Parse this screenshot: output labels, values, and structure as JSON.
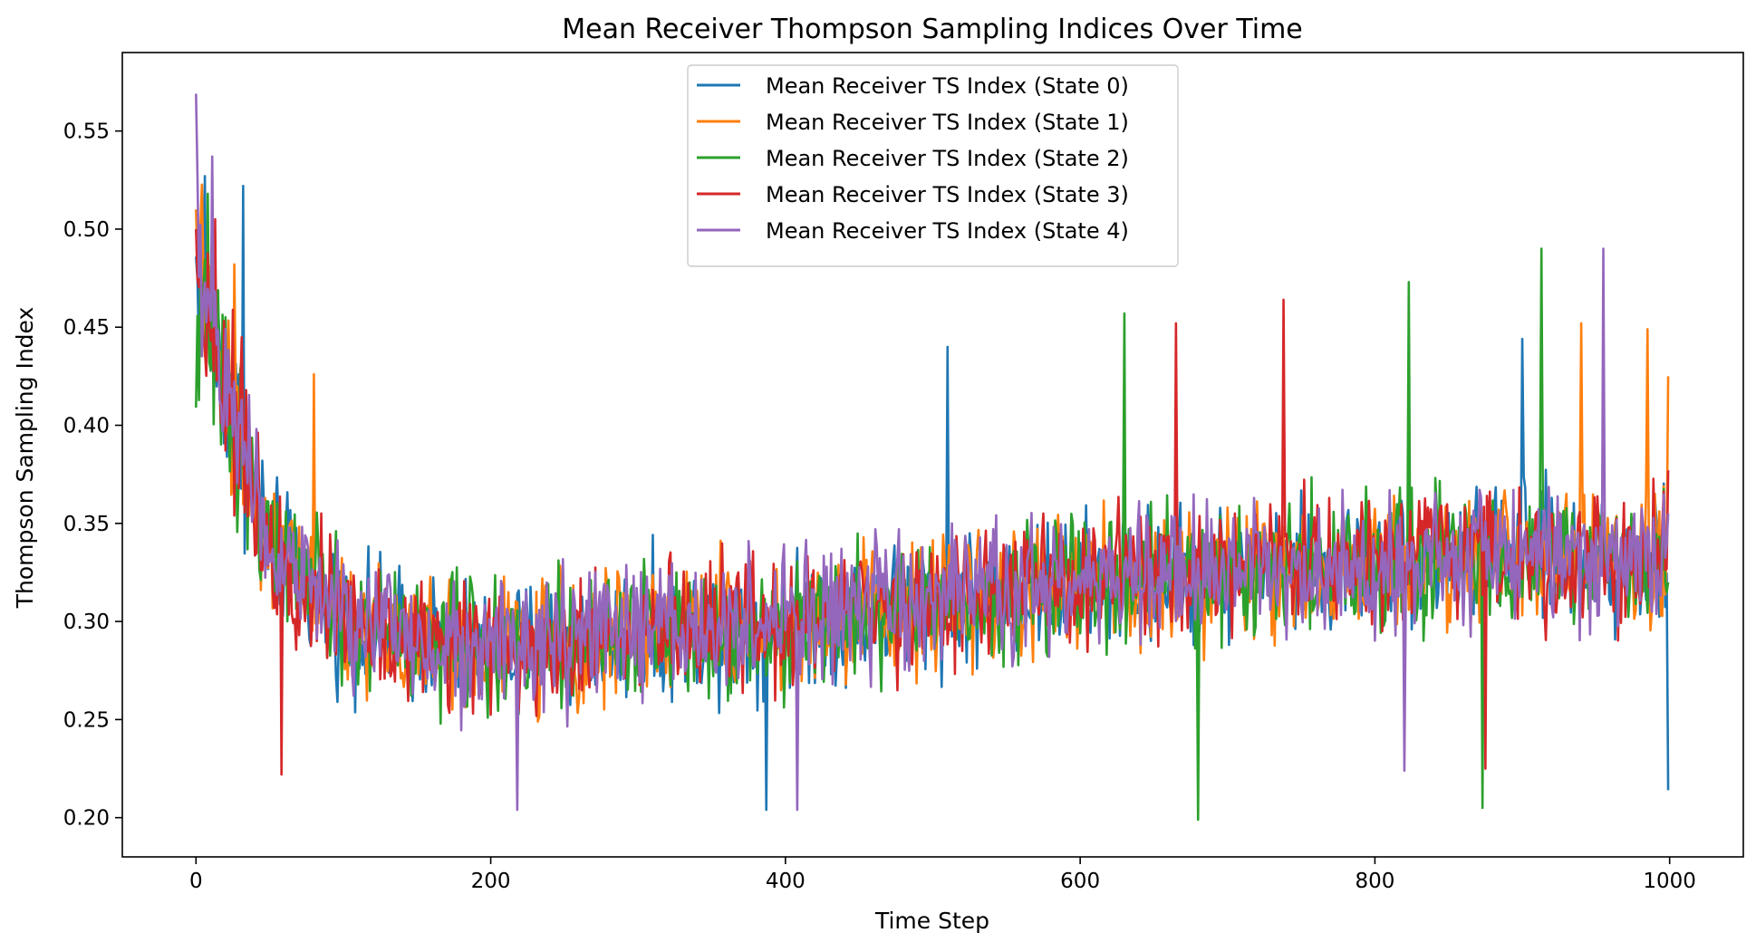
{
  "chart_data": {
    "type": "line",
    "title": "Mean Receiver Thompson Sampling Indices Over Time",
    "xlabel": "Time Step",
    "ylabel": "Thompson Sampling Index",
    "xlim": [
      -50,
      1050
    ],
    "ylim": [
      0.18,
      0.59
    ],
    "xticks": [
      0,
      200,
      400,
      600,
      800,
      1000
    ],
    "xtick_labels": [
      "0",
      "200",
      "400",
      "600",
      "800",
      "1000"
    ],
    "yticks": [
      0.2,
      0.25,
      0.3,
      0.35,
      0.4,
      0.45,
      0.5,
      0.55
    ],
    "ytick_labels": [
      "0.20",
      "0.25",
      "0.30",
      "0.35",
      "0.40",
      "0.45",
      "0.50",
      "0.55"
    ],
    "grid": false,
    "legend_position": "top-center",
    "n_points": 1000,
    "series": [
      {
        "name": "Mean Receiver TS Index (State 0)",
        "color": "#1f77b4",
        "start": 0.486,
        "end": 0.214,
        "trend_x": [
          0,
          20,
          50,
          100,
          200,
          300,
          400,
          500,
          600,
          700,
          800,
          900,
          1000
        ],
        "trend_y": [
          0.48,
          0.42,
          0.34,
          0.3,
          0.285,
          0.295,
          0.3,
          0.31,
          0.32,
          0.325,
          0.33,
          0.335,
          0.33
        ],
        "amplitude": 0.05,
        "peaks": [
          [
            6,
            0.527
          ],
          [
            32,
            0.522
          ],
          [
            510,
            0.44
          ],
          [
            387,
            0.204
          ],
          [
            900,
            0.444
          ]
        ]
      },
      {
        "name": "Mean Receiver TS Index (State 1)",
        "color": "#ff7f0e",
        "start": 0.51,
        "end": 0.425,
        "trend_x": [
          0,
          20,
          50,
          100,
          200,
          300,
          400,
          500,
          600,
          700,
          800,
          900,
          1000
        ],
        "trend_y": [
          0.49,
          0.42,
          0.34,
          0.3,
          0.285,
          0.295,
          0.3,
          0.31,
          0.32,
          0.325,
          0.33,
          0.335,
          0.33
        ],
        "amplitude": 0.05,
        "peaks": [
          [
            26,
            0.482
          ],
          [
            80,
            0.426
          ],
          [
            940,
            0.452
          ],
          [
            985,
            0.449
          ]
        ]
      },
      {
        "name": "Mean Receiver TS Index (State 2)",
        "color": "#2ca02c",
        "start": 0.409,
        "end": 0.32,
        "trend_x": [
          0,
          20,
          50,
          100,
          200,
          300,
          400,
          500,
          600,
          700,
          800,
          900,
          1000
        ],
        "trend_y": [
          0.46,
          0.42,
          0.34,
          0.3,
          0.285,
          0.295,
          0.3,
          0.31,
          0.32,
          0.325,
          0.33,
          0.335,
          0.33
        ],
        "amplitude": 0.05,
        "peaks": [
          [
            8,
            0.518
          ],
          [
            630,
            0.457
          ],
          [
            680,
            0.199
          ],
          [
            823,
            0.473
          ],
          [
            913,
            0.49
          ],
          [
            873,
            0.205
          ]
        ]
      },
      {
        "name": "Mean Receiver TS Index (State 3)",
        "color": "#d62728",
        "start": 0.5,
        "end": 0.377,
        "trend_x": [
          0,
          20,
          50,
          100,
          200,
          300,
          400,
          500,
          600,
          700,
          800,
          900,
          1000
        ],
        "trend_y": [
          0.48,
          0.42,
          0.34,
          0.3,
          0.285,
          0.295,
          0.3,
          0.31,
          0.32,
          0.325,
          0.33,
          0.335,
          0.33
        ],
        "amplitude": 0.05,
        "peaks": [
          [
            13,
            0.505
          ],
          [
            58,
            0.222
          ],
          [
            738,
            0.464
          ],
          [
            665,
            0.452
          ],
          [
            875,
            0.225
          ]
        ]
      },
      {
        "name": "Mean Receiver TS Index (State 4)",
        "color": "#9467bd",
        "start": 0.569,
        "end": 0.355,
        "trend_x": [
          0,
          20,
          50,
          100,
          200,
          300,
          400,
          500,
          600,
          700,
          800,
          900,
          1000
        ],
        "trend_y": [
          0.49,
          0.42,
          0.34,
          0.3,
          0.285,
          0.295,
          0.3,
          0.31,
          0.32,
          0.325,
          0.33,
          0.335,
          0.33
        ],
        "amplitude": 0.05,
        "peaks": [
          [
            11,
            0.537
          ],
          [
            218,
            0.204
          ],
          [
            408,
            0.204
          ],
          [
            955,
            0.49
          ],
          [
            820,
            0.224
          ]
        ]
      }
    ]
  }
}
